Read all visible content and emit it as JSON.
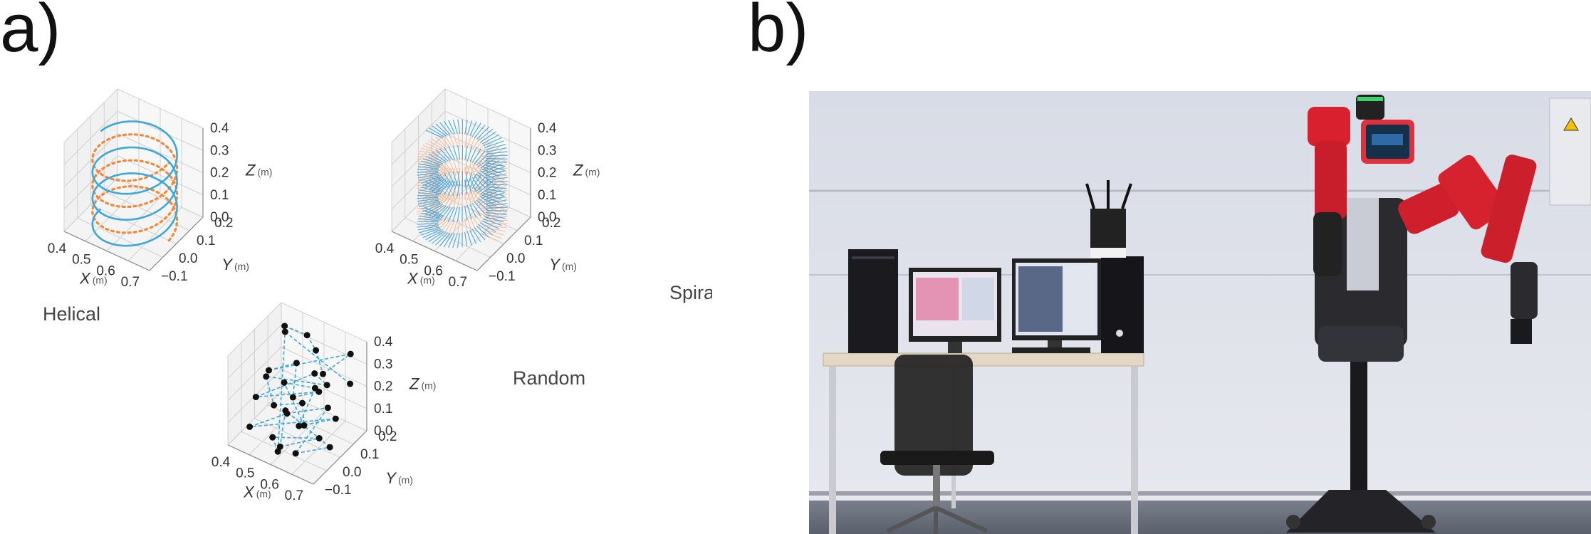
{
  "panels": {
    "a": "a)",
    "b": "b)"
  },
  "chart_data": [
    {
      "type": "line",
      "name_label": "Helical",
      "axes": {
        "x": {
          "label": "X",
          "unit": "(m)",
          "ticks": [
            "0.4",
            "0.5",
            "0.6",
            "0.7"
          ]
        },
        "y": {
          "label": "Y",
          "unit": "(m)",
          "ticks": [
            "−0.1",
            "0.0",
            "0.1",
            "0.2"
          ]
        },
        "z": {
          "label": "Z",
          "unit": "(m)",
          "ticks": [
            "0.0",
            "0.1",
            "0.2",
            "0.3",
            "0.4"
          ]
        }
      },
      "xlim": [
        0.4,
        0.75
      ],
      "ylim": [
        -0.1,
        0.2
      ],
      "zlim": [
        0.0,
        0.4
      ],
      "grid": true,
      "series": [
        {
          "style": "dotted",
          "color": "#f08a3a",
          "center": [
            0.58,
            0.05
          ],
          "radius": 0.14,
          "turns": 3,
          "z_range": [
            0.0,
            0.35
          ]
        },
        {
          "style": "solid",
          "color": "#3aa8d8",
          "center": [
            0.58,
            0.05
          ],
          "radius": 0.14,
          "turns": 3,
          "z_range": [
            0.0,
            0.35
          ],
          "phase": 3.14
        }
      ]
    },
    {
      "type": "area",
      "name_label": "Spiral",
      "axes": {
        "x": {
          "label": "X",
          "unit": "(m)",
          "ticks": [
            "0.4",
            "0.5",
            "0.6",
            "0.7"
          ]
        },
        "y": {
          "label": "Y",
          "unit": "(m)",
          "ticks": [
            "−0.1",
            "0.0",
            "0.1",
            "0.2"
          ]
        },
        "z": {
          "label": "Z",
          "unit": "(m)",
          "ticks": [
            "0.0",
            "0.1",
            "0.2",
            "0.3",
            "0.4"
          ]
        }
      },
      "xlim": [
        0.4,
        0.75
      ],
      "ylim": [
        -0.1,
        0.2
      ],
      "zlim": [
        0.0,
        0.4
      ],
      "grid": true,
      "series": [
        {
          "style": "band",
          "color": "#f5b894",
          "center": [
            0.58,
            0.05
          ],
          "radius_range": [
            0.08,
            0.15
          ],
          "turns": 3,
          "z_range": [
            0.0,
            0.35
          ]
        },
        {
          "style": "band",
          "color": "#3aa0dc",
          "center": [
            0.58,
            0.05
          ],
          "radius_range": [
            0.08,
            0.15
          ],
          "turns": 3,
          "z_range": [
            0.0,
            0.35
          ],
          "phase": 3.14
        }
      ]
    },
    {
      "type": "scatter",
      "name_label": "Random",
      "axes": {
        "x": {
          "label": "X",
          "unit": "(m)",
          "ticks": [
            "0.4",
            "0.5",
            "0.6",
            "0.7"
          ]
        },
        "y": {
          "label": "Y",
          "unit": "(m)",
          "ticks": [
            "−0.1",
            "0.0",
            "0.1",
            "0.2"
          ]
        },
        "z": {
          "label": "Z",
          "unit": "(m)",
          "ticks": [
            "0.0",
            "0.1",
            "0.2",
            "0.3",
            "0.4"
          ]
        }
      },
      "xlim": [
        0.4,
        0.75
      ],
      "ylim": [
        -0.1,
        0.2
      ],
      "zlim": [
        0.0,
        0.4
      ],
      "grid": true,
      "marker_color": "#111111",
      "line_color": "#3aa8d8",
      "points": [
        [
          0.45,
          0.15,
          0.36
        ],
        [
          0.52,
          0.18,
          0.33
        ],
        [
          0.6,
          0.12,
          0.35
        ],
        [
          0.68,
          0.05,
          0.34
        ],
        [
          0.72,
          0.15,
          0.37
        ],
        [
          0.48,
          0.02,
          0.28
        ],
        [
          0.55,
          0.08,
          0.3
        ],
        [
          0.63,
          -0.05,
          0.29
        ],
        [
          0.7,
          0.0,
          0.31
        ],
        [
          0.5,
          -0.08,
          0.25
        ],
        [
          0.58,
          0.14,
          0.22
        ],
        [
          0.66,
          0.1,
          0.24
        ],
        [
          0.44,
          0.06,
          0.2
        ],
        [
          0.53,
          -0.02,
          0.18
        ],
        [
          0.61,
          0.03,
          0.19
        ],
        [
          0.69,
          -0.07,
          0.21
        ],
        [
          0.47,
          0.12,
          0.14
        ],
        [
          0.56,
          0.17,
          0.12
        ],
        [
          0.64,
          -0.03,
          0.15
        ],
        [
          0.71,
          0.08,
          0.13
        ],
        [
          0.46,
          -0.06,
          0.08
        ],
        [
          0.54,
          0.04,
          0.1
        ],
        [
          0.62,
          0.16,
          0.07
        ],
        [
          0.67,
          -0.09,
          0.09
        ],
        [
          0.73,
          0.02,
          0.06
        ],
        [
          0.49,
          0.1,
          0.04
        ],
        [
          0.57,
          -0.04,
          0.03
        ],
        [
          0.65,
          0.07,
          0.02
        ],
        [
          0.51,
          0.0,
          0.01
        ],
        [
          0.59,
          -0.08,
          0.05
        ],
        [
          0.43,
          0.18,
          0.3
        ],
        [
          0.74,
          0.12,
          0.27
        ]
      ]
    }
  ]
}
